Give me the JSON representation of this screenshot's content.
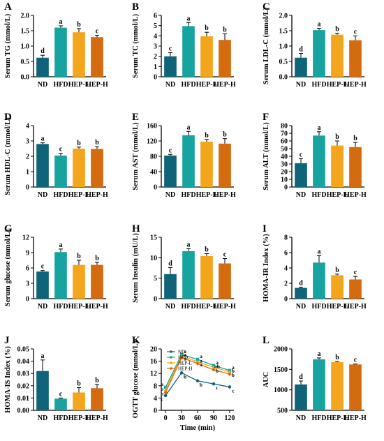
{
  "colors": {
    "ND": "#10647a",
    "HFD": "#17a39f",
    "HEP-L": "#f3a51c",
    "HEP-H": "#d46b0f",
    "axis": "#000000",
    "error": "#000000"
  },
  "chart_data": [
    {
      "panel": "A",
      "type": "bar",
      "ylabel": "Serum TG (mmol/L)",
      "categories": [
        "ND",
        "HFD",
        "HEP-L",
        "HEP-H"
      ],
      "values": [
        0.62,
        1.6,
        1.45,
        1.29
      ],
      "errors": [
        0.08,
        0.06,
        0.12,
        0.06
      ],
      "sig": [
        "d",
        "a",
        "b",
        "c"
      ],
      "ylim": [
        0,
        2.0
      ],
      "yticks": [
        "0.0",
        "0.5",
        "1.0",
        "1.5",
        "2.0"
      ]
    },
    {
      "panel": "B",
      "type": "bar",
      "ylabel": "Serum TC (mmol/L)",
      "categories": [
        "ND",
        "HFD",
        "HEP-L",
        "HEP-H"
      ],
      "values": [
        2.0,
        4.95,
        3.95,
        3.6
      ],
      "errors": [
        0.35,
        0.35,
        0.4,
        0.6
      ],
      "sig": [
        "c",
        "a",
        "b",
        "b"
      ],
      "ylim": [
        0,
        6
      ],
      "yticks": [
        "0",
        "1",
        "2",
        "3",
        "4",
        "5",
        "6"
      ]
    },
    {
      "panel": "C",
      "type": "bar",
      "ylabel": "Serum LDL-C (mmol/L)",
      "categories": [
        "ND",
        "HFD",
        "HEP-L",
        "HEP-H"
      ],
      "values": [
        0.62,
        1.52,
        1.37,
        1.19
      ],
      "errors": [
        0.14,
        0.06,
        0.05,
        0.14
      ],
      "sig": [
        "d",
        "a",
        "b",
        "c"
      ],
      "ylim": [
        0,
        2.0
      ],
      "yticks": [
        "0.0",
        "0.5",
        "1.0",
        "1.5",
        "2.0"
      ]
    },
    {
      "panel": "D",
      "type": "bar",
      "ylabel": "Serum HDL-C (mmol/L)",
      "categories": [
        "ND",
        "HFD",
        "HEP-L",
        "HEP-H"
      ],
      "values": [
        2.8,
        2.05,
        2.5,
        2.48
      ],
      "errors": [
        0.08,
        0.15,
        0.1,
        0.15
      ],
      "sig": [
        "a",
        "c",
        "b",
        "b"
      ],
      "ylim": [
        0,
        4
      ],
      "yticks": [
        "0",
        "1",
        "2",
        "3",
        "4"
      ]
    },
    {
      "panel": "E",
      "type": "bar",
      "ylabel": "Serum AST (mmol/L)",
      "categories": [
        "ND",
        "HFD",
        "HEP-L",
        "HEP-H"
      ],
      "values": [
        82,
        135,
        118,
        113
      ],
      "errors": [
        3,
        10,
        6,
        13
      ],
      "sig": [
        "c",
        "a",
        "b",
        "b"
      ],
      "ylim": [
        0,
        160
      ],
      "yticks": [
        "0",
        "40",
        "80",
        "120",
        "160"
      ]
    },
    {
      "panel": "F",
      "type": "bar",
      "ylabel": "Serum ALT (mmol/L)",
      "categories": [
        "ND",
        "HFD",
        "HEP-L",
        "HEP-H"
      ],
      "values": [
        31,
        67,
        54,
        52
      ],
      "errors": [
        6,
        5,
        6,
        6
      ],
      "sig": [
        "c",
        "a",
        "b",
        "b"
      ],
      "ylim": [
        0,
        80
      ],
      "yticks": [
        "0",
        "10",
        "20",
        "30",
        "40",
        "50",
        "60",
        "70",
        "80"
      ]
    },
    {
      "panel": "G",
      "type": "bar",
      "ylabel": "Serum glucose (mmol/L)",
      "categories": [
        "ND",
        "HFD",
        "HEP-L",
        "HEP-H"
      ],
      "values": [
        5.3,
        9.1,
        6.6,
        6.6
      ],
      "errors": [
        0.2,
        0.6,
        0.9,
        0.5
      ],
      "sig": [
        "c",
        "a",
        "b",
        "b"
      ],
      "ylim": [
        0,
        12
      ],
      "yticks": [
        "0",
        "3",
        "6",
        "9",
        "12"
      ]
    },
    {
      "panel": "H",
      "type": "bar",
      "ylabel": "Serum Insulin (mU/L)",
      "categories": [
        "ND",
        "HFD",
        "HEP-L",
        "HEP-H"
      ],
      "values": [
        6.0,
        11.6,
        10.4,
        8.6
      ],
      "errors": [
        1.6,
        0.6,
        0.6,
        1.2
      ],
      "sig": [
        "d",
        "a",
        "b",
        "c"
      ],
      "ylim": [
        0,
        15
      ],
      "yticks": [
        "0",
        "5",
        "10",
        "15"
      ]
    },
    {
      "panel": "I",
      "type": "bar",
      "ylabel": "HOMA-IR Index (%)",
      "categories": [
        "ND",
        "HFD",
        "HEP-L",
        "HEP-H"
      ],
      "values": [
        1.4,
        4.7,
        3.05,
        2.5
      ],
      "errors": [
        0.1,
        0.9,
        0.15,
        0.4
      ],
      "sig": [
        "d",
        "a",
        "b",
        "c"
      ],
      "ylim": [
        0,
        8
      ],
      "yticks": [
        "0",
        "2",
        "4",
        "6",
        "8"
      ]
    },
    {
      "panel": "J",
      "type": "bar",
      "ylabel": "HOMA-IS Index (%)",
      "categories": [
        "ND",
        "HFD",
        "HEP-L",
        "HEP-H"
      ],
      "values": [
        0.032,
        0.0095,
        0.0145,
        0.018
      ],
      "errors": [
        0.009,
        0.0005,
        0.004,
        0.003
      ],
      "sig": [
        "a",
        "c",
        "b",
        "b"
      ],
      "ylim": [
        0,
        0.05
      ],
      "yticks": [
        "0.00",
        "0.01",
        "0.02",
        "0.03",
        "0.04",
        "0.05"
      ]
    },
    {
      "panel": "K",
      "type": "line",
      "ylabel": "OGTT glucose (mmol/L)",
      "xlabel": "Time (min)",
      "x": [
        0,
        30,
        60,
        90,
        120
      ],
      "ylim": [
        0,
        20
      ],
      "xlim": [
        -8,
        128
      ],
      "yticks": [
        "0",
        "4",
        "8",
        "12",
        "16",
        "20"
      ],
      "xticks": [
        "0",
        "30",
        "60",
        "90",
        "120"
      ],
      "legend": [
        "ND",
        "HFD",
        "HEP-L",
        "HEP-H"
      ],
      "series": [
        {
          "name": "ND",
          "values": [
            4.8,
            12.2,
            9.6,
            8.6,
            7.6
          ],
          "sig": [
            "c",
            "b",
            "b",
            "c",
            "c"
          ]
        },
        {
          "name": "HFD",
          "values": [
            7.5,
            18.2,
            16.6,
            14.6,
            13.0
          ],
          "sig": [
            "a",
            "a",
            "a",
            "a",
            "a"
          ]
        },
        {
          "name": "HEP-L",
          "values": [
            6.6,
            17.8,
            15.8,
            14.0,
            12.5
          ],
          "sig": [
            "b",
            "a",
            "a",
            "ab",
            "b"
          ]
        },
        {
          "name": "HEP-H",
          "values": [
            5.8,
            17.2,
            15.2,
            13.2,
            11.8
          ],
          "sig": [
            "b",
            "a",
            "a",
            "b",
            "b"
          ]
        }
      ]
    },
    {
      "panel": "L",
      "type": "bar",
      "ylabel": "AUC",
      "categories": [
        "ND",
        "HFD",
        "HEP-L",
        "HEP-H"
      ],
      "values": [
        1130,
        1745,
        1675,
        1620
      ],
      "errors": [
        85,
        35,
        15,
        10
      ],
      "sig": [
        "d",
        "a",
        "b",
        "c"
      ],
      "ylim": [
        500,
        2000
      ],
      "yticks": [
        "500",
        "1000",
        "1500",
        "2000"
      ]
    }
  ]
}
